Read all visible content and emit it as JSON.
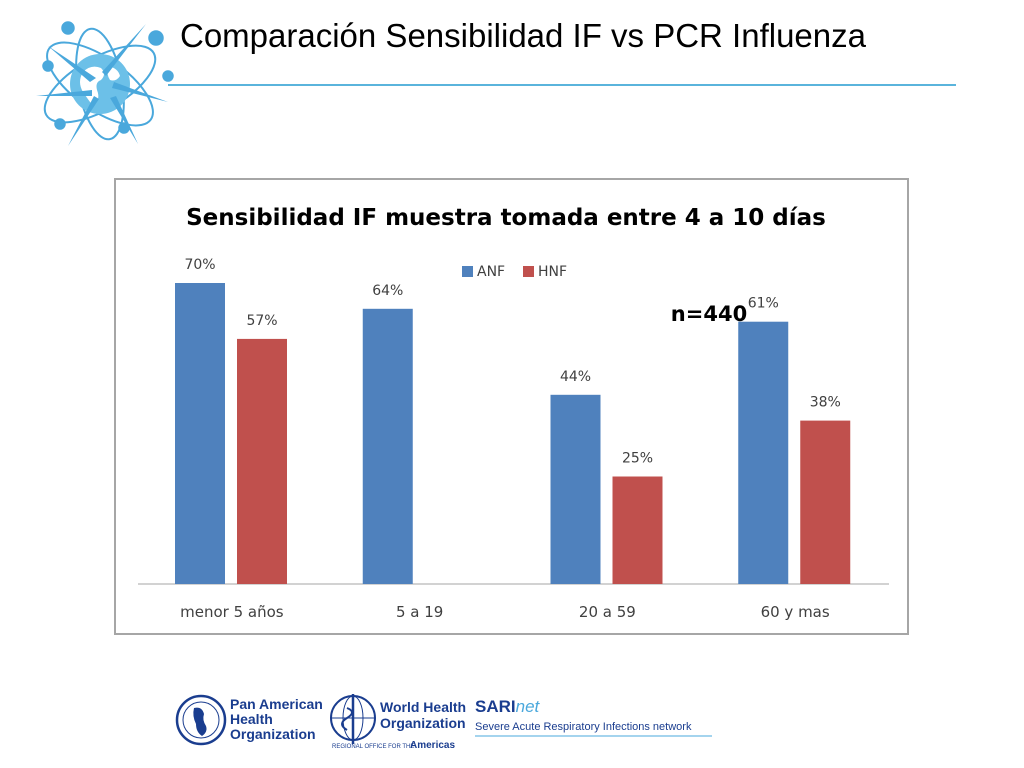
{
  "slide": {
    "title": "Comparación Sensibilidad IF vs PCR Influenza"
  },
  "colors": {
    "accent_line": "#5ab4dc",
    "anf": "#4f81bd",
    "hnf": "#c0504d",
    "logo_blue": "#1a3d8f",
    "logo_light": "#4aa8dc"
  },
  "icons": {
    "top_logo": "globe-influenza-icon",
    "paho": "paho-emblem-icon",
    "who": "who-emblem-icon"
  },
  "chart_data": {
    "type": "bar",
    "title": "Sensibilidad IF muestra tomada entre 4 a 10 días",
    "annotation": "n=440",
    "categories": [
      "menor 5 años",
      "5 a 19",
      "20 a 59",
      "60 y mas"
    ],
    "series": [
      {
        "name": "ANF",
        "values": [
          70,
          64,
          44,
          61
        ],
        "labels": [
          "70%",
          "64%",
          "44%",
          "61%"
        ]
      },
      {
        "name": "HNF",
        "values": [
          57,
          null,
          25,
          38
        ],
        "labels": [
          "57%",
          "",
          "25%",
          "38%"
        ]
      }
    ],
    "ylim": [
      0,
      80
    ],
    "grid": false,
    "legend": "top-center",
    "xlabel": "",
    "ylabel": ""
  },
  "footer": {
    "paho": {
      "line1": "Pan American",
      "line2": "Health",
      "line3": "Organization"
    },
    "who": {
      "line1": "World Health",
      "line2": "Organization",
      "sub_small": "REGIONAL OFFICE FOR THE",
      "sub_region": "Americas"
    },
    "sarinet": {
      "name_bold": "SARI",
      "name_italic": "net",
      "tagline": "Severe Acute Respiratory Infections network"
    }
  }
}
